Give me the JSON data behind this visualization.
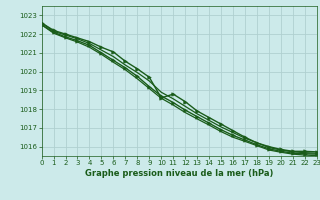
{
  "title": "Graphe pression niveau de la mer (hPa)",
  "background_color": "#cceaea",
  "grid_color": "#b0d0d0",
  "line_color": "#1a5c1a",
  "xlim": [
    0,
    23
  ],
  "ylim": [
    1015.5,
    1023.5
  ],
  "yticks": [
    1016,
    1017,
    1018,
    1019,
    1020,
    1021,
    1022,
    1023
  ],
  "xticks": [
    0,
    1,
    2,
    3,
    4,
    5,
    6,
    7,
    8,
    9,
    10,
    11,
    12,
    13,
    14,
    15,
    16,
    17,
    18,
    19,
    20,
    21,
    22,
    23
  ],
  "series": [
    {
      "y": [
        1022.6,
        1022.2,
        1022.0,
        1021.8,
        1021.6,
        1021.3,
        1021.05,
        1020.55,
        1020.15,
        1019.7,
        1018.6,
        1018.8,
        1018.4,
        1017.9,
        1017.55,
        1017.2,
        1016.85,
        1016.5,
        1016.2,
        1016.0,
        1015.85,
        1015.75,
        1015.75,
        1015.72
      ],
      "marker": true,
      "lw": 1.0
    },
    {
      "y": [
        1022.6,
        1022.15,
        1021.95,
        1021.75,
        1021.5,
        1021.15,
        1020.8,
        1020.35,
        1019.95,
        1019.5,
        1018.9,
        1018.55,
        1018.15,
        1017.75,
        1017.4,
        1017.05,
        1016.75,
        1016.45,
        1016.2,
        1015.95,
        1015.82,
        1015.72,
        1015.68,
        1015.65
      ],
      "marker": false,
      "lw": 0.9
    },
    {
      "y": [
        1022.5,
        1022.1,
        1021.85,
        1021.65,
        1021.4,
        1021.0,
        1020.6,
        1020.2,
        1019.75,
        1019.2,
        1018.7,
        1018.35,
        1017.95,
        1017.6,
        1017.25,
        1016.9,
        1016.6,
        1016.35,
        1016.1,
        1015.88,
        1015.75,
        1015.65,
        1015.62,
        1015.6
      ],
      "marker": true,
      "lw": 1.0
    },
    {
      "y": [
        1022.5,
        1022.05,
        1021.8,
        1021.58,
        1021.3,
        1020.92,
        1020.5,
        1020.1,
        1019.62,
        1019.1,
        1018.58,
        1018.22,
        1017.82,
        1017.48,
        1017.15,
        1016.8,
        1016.5,
        1016.28,
        1016.05,
        1015.82,
        1015.7,
        1015.6,
        1015.55,
        1015.52
      ],
      "marker": false,
      "lw": 0.9
    }
  ],
  "tick_fontsize": 5.0,
  "xlabel_fontsize": 6.0
}
